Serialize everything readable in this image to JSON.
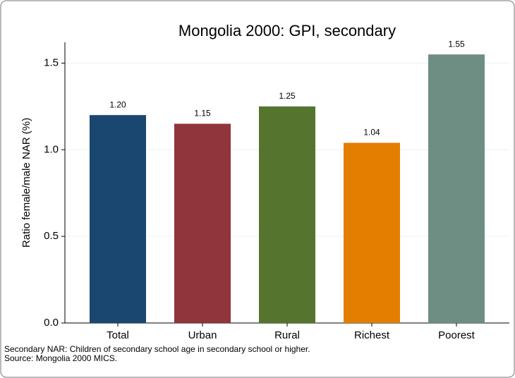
{
  "chart_data": {
    "type": "bar",
    "title": "Mongolia 2000: GPI, secondary",
    "y_label": "Ratio female/male NAR (%)",
    "categories": [
      "Total",
      "Urban",
      "Rural",
      "Richest",
      "Poorest"
    ],
    "values": [
      1.2,
      1.15,
      1.25,
      1.04,
      1.55
    ],
    "value_labels": [
      "1.20",
      "1.15",
      "1.25",
      "1.04",
      "1.55"
    ],
    "colors": [
      "#1a476f",
      "#90353b",
      "#55752f",
      "#e37e00",
      "#6e8e84"
    ],
    "ylim": [
      0,
      1.62
    ],
    "yticks": [
      {
        "value": 0,
        "label": "0.0"
      },
      {
        "value": 0.5,
        "label": "0.5"
      },
      {
        "value": 1,
        "label": "1.0"
      },
      {
        "value": 1.5,
        "label": "1.5"
      }
    ],
    "grid": true,
    "notes": [
      "Secondary NAR: Children of secondary school age in secondary school or higher.",
      "Source: Mongolia 2000 MICS."
    ]
  }
}
